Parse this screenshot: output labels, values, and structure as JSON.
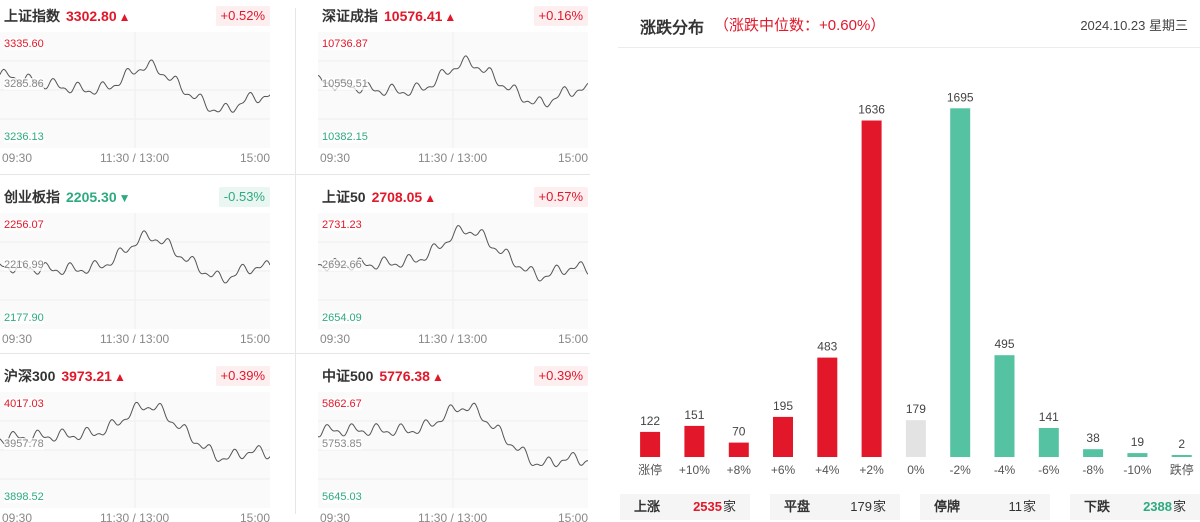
{
  "indices": [
    {
      "name": "上证指数",
      "price": "3302.80",
      "dir": "up",
      "arrow": "▲",
      "change": "+0.52%",
      "levels": [
        "3335.60",
        "3285.86",
        "3236.13"
      ],
      "times": [
        "09:30",
        "11:30 / 13:00",
        "15:00"
      ]
    },
    {
      "name": "深证成指",
      "price": "10576.41",
      "dir": "up",
      "arrow": "▲",
      "change": "+0.16%",
      "levels": [
        "10736.87",
        "10559.51",
        "10382.15"
      ],
      "times": [
        "09:30",
        "11:30 / 13:00",
        "15:00"
      ]
    },
    {
      "name": "创业板指",
      "price": "2205.30",
      "dir": "down",
      "arrow": "▼",
      "change": "-0.53%",
      "levels": [
        "2256.07",
        "2216.99",
        "2177.90"
      ],
      "times": [
        "09:30",
        "11:30 / 13:00",
        "15:00"
      ]
    },
    {
      "name": "上证50",
      "price": "2708.05",
      "dir": "up",
      "arrow": "▲",
      "change": "+0.57%",
      "levels": [
        "2731.23",
        "2692.66",
        "2654.09"
      ],
      "times": [
        "09:30",
        "11:30 / 13:00",
        "15:00"
      ]
    },
    {
      "name": "沪深300",
      "price": "3973.21",
      "dir": "up",
      "arrow": "▲",
      "change": "+0.39%",
      "levels": [
        "4017.03",
        "3957.78",
        "3898.52"
      ],
      "times": [
        "09:30",
        "11:30 / 13:00",
        "15:00"
      ]
    },
    {
      "name": "中证500",
      "price": "5776.38",
      "dir": "up",
      "arrow": "▲",
      "change": "+0.39%",
      "levels": [
        "5862.67",
        "5753.85",
        "5645.03"
      ],
      "times": [
        "09:30",
        "11:30 / 13:00",
        "15:00"
      ]
    }
  ],
  "distribution": {
    "title": "涨跌分布",
    "median_text": "（涨跌中位数：+0.60%）",
    "date": "2024.10.23 星期三",
    "colors": {
      "up": "#e2182a",
      "flat": "#e3e3e3",
      "down": "#55c2a2"
    },
    "summary": [
      {
        "label": "上涨",
        "value": "2535",
        "unit": "家"
      },
      {
        "label": "平盘",
        "value": "179",
        "unit": "家"
      },
      {
        "label": "停牌",
        "value": "11",
        "unit": "家"
      },
      {
        "label": "下跌",
        "value": "2388",
        "unit": "家"
      }
    ]
  },
  "chart_data": {
    "type": "bar",
    "categories": [
      "涨停",
      "+10%",
      "+8%",
      "+6%",
      "+4%",
      "+2%",
      "0%",
      "-2%",
      "-4%",
      "-6%",
      "-8%",
      "-10%",
      "跌停"
    ],
    "values": [
      122,
      151,
      70,
      195,
      483,
      1636,
      179,
      1695,
      495,
      141,
      38,
      19,
      2
    ],
    "groups": [
      "up",
      "up",
      "up",
      "up",
      "up",
      "up",
      "flat",
      "down",
      "down",
      "down",
      "down",
      "down",
      "down"
    ],
    "title": "涨跌分布",
    "xlabel": "",
    "ylabel": "",
    "ylim": [
      0,
      1750
    ],
    "grid": false
  }
}
